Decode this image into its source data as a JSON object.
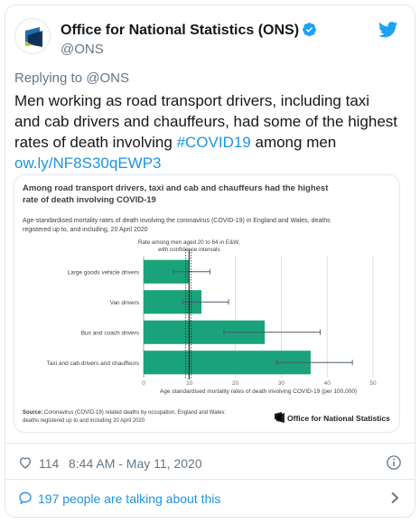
{
  "tweet": {
    "author_name": "Office for National Statistics (ONS)",
    "handle": "@ONS",
    "replying_prefix": "Replying to",
    "replying_to": "@ONS",
    "text_before": "Men working as road transport drivers, including taxi and cab drivers and chauffeurs, had some of the highest rates of death involving ",
    "hashtag": "#COVID19",
    "text_after": " among men",
    "link": "ow.ly/NF8S30qEWP3",
    "likes": "114",
    "time": "8:44 AM - May 11, 2020",
    "talking": "197 people are talking about this",
    "icons": [
      "ons-logo-icon",
      "verified-icon",
      "twitter-bird-icon",
      "heart-icon",
      "info-icon",
      "comment-bubble-icon",
      "chevron-right-icon"
    ]
  },
  "media": {
    "title_line1": "Among road transport drivers, taxi and cab and chauffeurs had the highest",
    "title_line2": "rate of death involving COVID-19",
    "subtitle_line1": "Age-standardised mortality rates of death involving the coronavirus (COVID-19) in England and Wales, deaths",
    "subtitle_line2": "registered up to, and including, 20 April 2020",
    "source_label": "Source:",
    "source_line1": " Coronavirus (COVID-19) related deaths by occupation, England and Wales:",
    "source_line2": "deaths registered up to and including 20 April 2020",
    "ons_brand": "Office for National Statistics"
  },
  "chart_data": {
    "type": "bar",
    "orientation": "horizontal",
    "categories": [
      "Large goods vehicle drivers",
      "Van drivers",
      "Bus and coach drivers",
      "Taxi and cab drivers and chauffeurs"
    ],
    "values": [
      9.9,
      12.6,
      26.4,
      36.4
    ],
    "ci_low": [
      6.5,
      8.5,
      17.5,
      29.0
    ],
    "ci_high": [
      14.5,
      18.5,
      38.5,
      45.5
    ],
    "reference_value": 9.9,
    "reference_ci": [
      9.2,
      10.3
    ],
    "reference_label_line1": "Rate among men aged 20 to 64 in E&W,",
    "reference_label_line2": "with confidence intervals",
    "xlabel": "Age standardised mortality rates of death involving COVID-19 (per 100,000)",
    "xlim": [
      0,
      50
    ],
    "xticks": [
      0,
      10,
      20,
      30,
      40,
      50
    ],
    "bar_color": "#1aa37a",
    "grid": true
  }
}
